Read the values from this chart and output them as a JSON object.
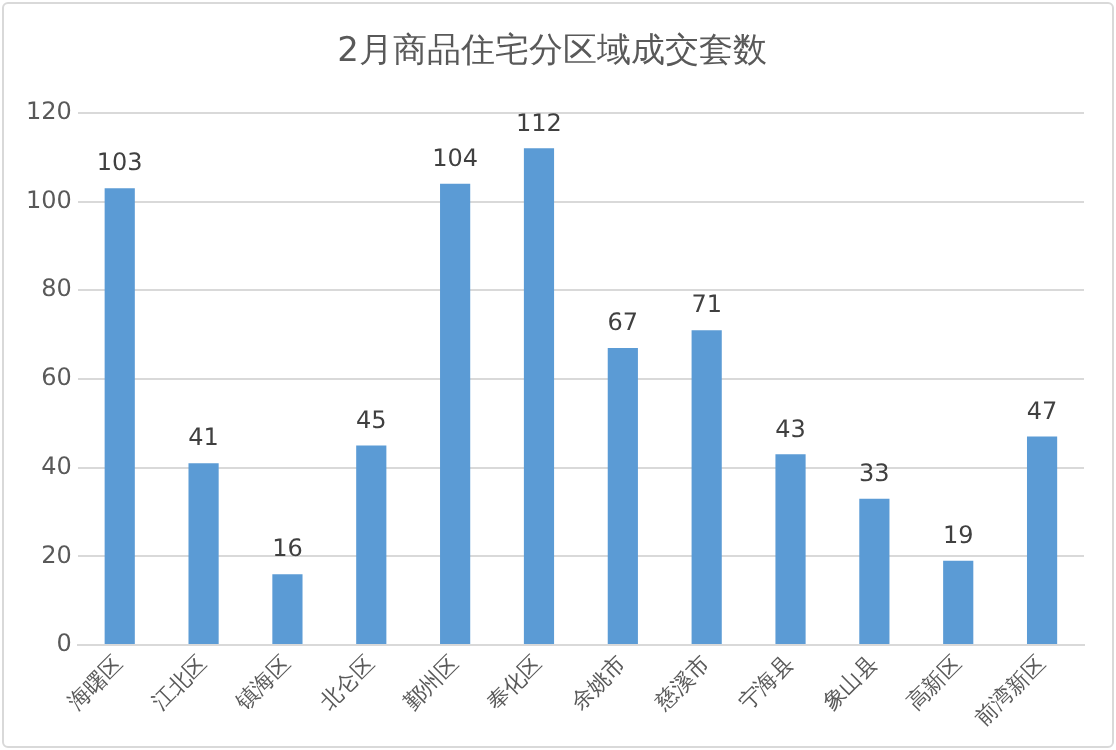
{
  "chart_data": {
    "type": "bar",
    "title": "2月商品住宅分区域成交套数",
    "categories": [
      "海曙区",
      "江北区",
      "镇海区",
      "北仑区",
      "鄞州区",
      "奉化区",
      "余姚市",
      "慈溪市",
      "宁海县",
      "象山县",
      "高新区",
      "前湾新区"
    ],
    "values": [
      103,
      41,
      16,
      45,
      104,
      112,
      67,
      71,
      43,
      33,
      19,
      47
    ],
    "color": "#5b9bd5",
    "ylim": [
      0,
      120
    ],
    "yticks": [
      0,
      20,
      40,
      60,
      80,
      100,
      120
    ],
    "grid": "y",
    "data_labels": true,
    "legend": false
  }
}
